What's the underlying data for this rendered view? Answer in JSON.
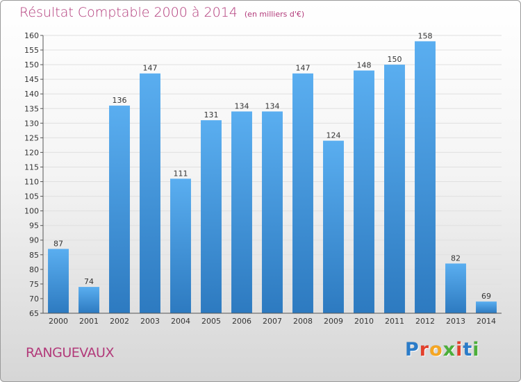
{
  "header": {
    "title": "Résultat Comptable 2000 à 2014",
    "unit": "(en milliers d'€)"
  },
  "footer": {
    "commune": "RANGUEVAUX",
    "logo_letters": [
      "P",
      "r",
      "o",
      "x",
      "i",
      "t",
      "i"
    ]
  },
  "colors": {
    "title": "#b23a7a",
    "bar_top": "#5aaef0",
    "bar_bottom": "#2d7ac0",
    "grid": "#e0e0e0"
  },
  "chart_data": {
    "type": "bar",
    "title": "Résultat Comptable 2000 à 2014",
    "subtitle": "(en milliers d'€)",
    "xlabel": "",
    "ylabel": "",
    "categories": [
      "2000",
      "2001",
      "2002",
      "2003",
      "2004",
      "2005",
      "2006",
      "2007",
      "2008",
      "2009",
      "2010",
      "2011",
      "2012",
      "2013",
      "2014"
    ],
    "values": [
      87,
      74,
      136,
      147,
      111,
      131,
      134,
      134,
      147,
      124,
      148,
      150,
      158,
      82,
      69
    ],
    "ylim": [
      65,
      160
    ],
    "yticks": [
      65,
      70,
      75,
      80,
      85,
      90,
      95,
      100,
      105,
      110,
      115,
      120,
      125,
      130,
      135,
      140,
      145,
      150,
      155,
      160
    ],
    "grid": true
  }
}
